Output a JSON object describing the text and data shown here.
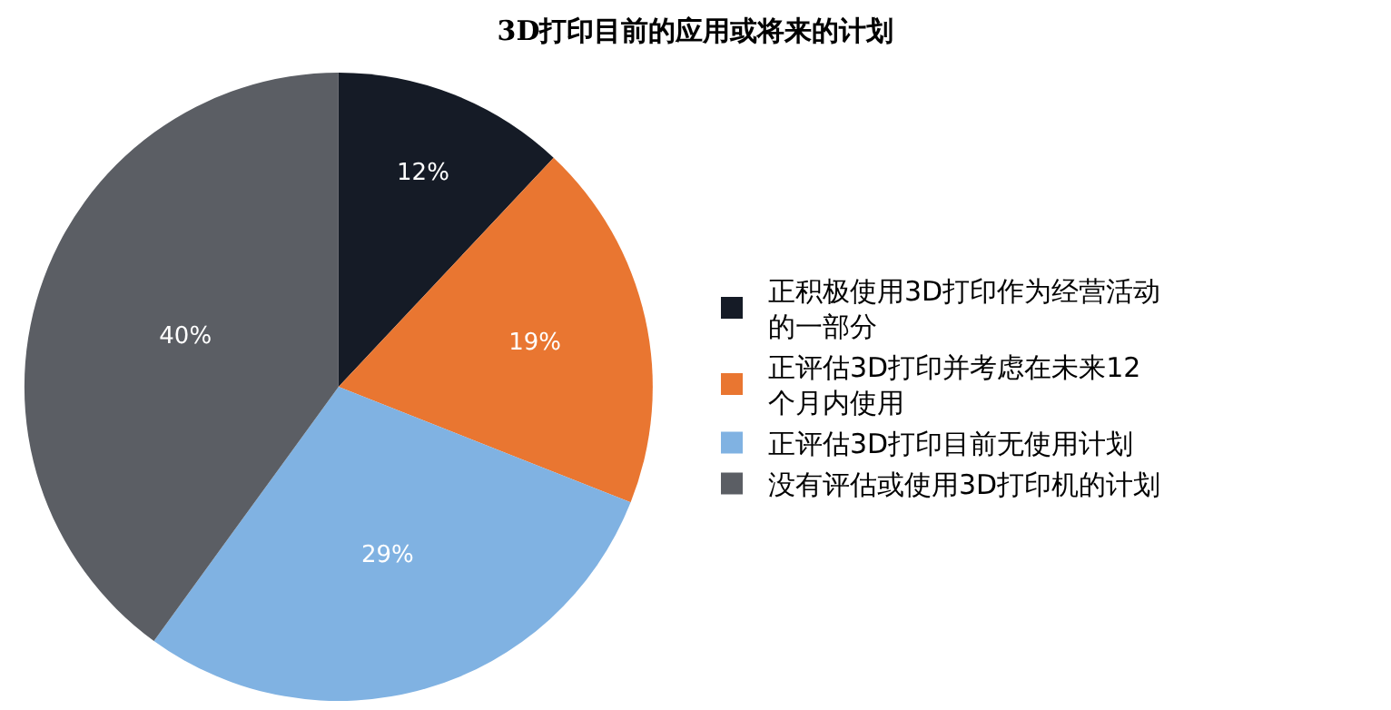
{
  "chart_data": {
    "type": "pie",
    "title": "3D打印目前的应用或将来的计划",
    "categories": [
      "正积极使用3D打印作为经营活动的一部分",
      "正评估3D打印并考虑在未来12个月内使用",
      "正评估3D打印目前无使用计划",
      "没有评估或使用3D打印机的计划"
    ],
    "values": [
      12,
      19,
      29,
      40
    ],
    "value_labels": [
      "12%",
      "19%",
      "29%",
      "40%"
    ],
    "colors": [
      "#151b26",
      "#e97631",
      "#80b2e2",
      "#5b5e64"
    ],
    "legend": "right"
  }
}
